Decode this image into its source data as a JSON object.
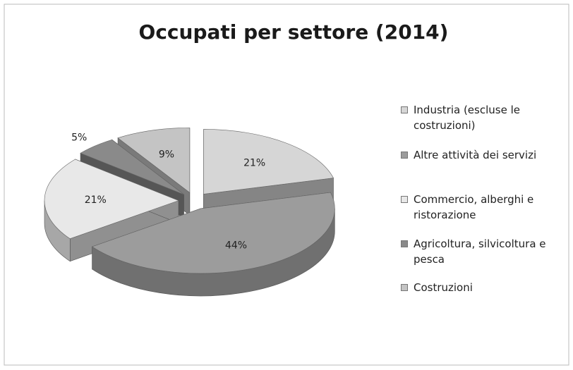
{
  "chart_data": {
    "type": "pie3d",
    "title": "Occupati per settore (2014)",
    "categories": [
      "Industria (escluse le costruzioni)",
      "Altre attività dei servizi",
      "Commercio, alberghi e ristorazione",
      "Agricoltura, silvicoltura e pesca",
      "Costruzioni"
    ],
    "values": [
      21,
      44,
      21,
      5,
      9
    ],
    "value_labels": [
      "21%",
      "44%",
      "21%",
      "5%",
      "9%"
    ],
    "colors": [
      "#d6d6d6",
      "#9c9c9c",
      "#e8e8e8",
      "#8a8a8a",
      "#c4c4c4"
    ],
    "legend": "right"
  }
}
